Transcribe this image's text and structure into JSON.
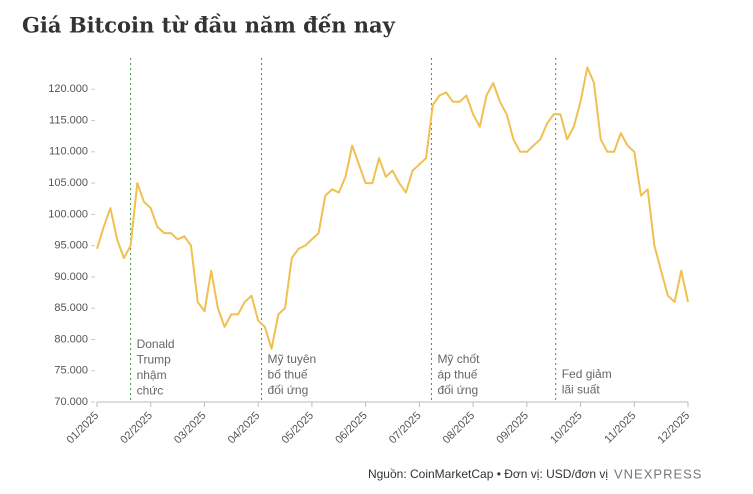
{
  "chart_data": {
    "type": "line",
    "title": "Giá Bitcoin từ đầu năm đến nay",
    "source": "Nguồn: CoinMarketCap • Đơn vị: USD/đơn vị",
    "logo": "VNEXPRESS",
    "color": "#f0c050",
    "categories": [
      "01/2025",
      null,
      null,
      null,
      null,
      null,
      null,
      null,
      "02/2025",
      null,
      null,
      null,
      null,
      null,
      null,
      null,
      "03/2025",
      null,
      null,
      null,
      null,
      null,
      null,
      null,
      "04/2025",
      null,
      null,
      null,
      null,
      null,
      null,
      null,
      "05/2025",
      null,
      null,
      null,
      null,
      null,
      null,
      null,
      "06/2025",
      null,
      null,
      null,
      null,
      null,
      null,
      null,
      "07/2025",
      null,
      null,
      null,
      null,
      null,
      null,
      null,
      "08/2025",
      null,
      null,
      null,
      null,
      null,
      null,
      null,
      "09/2025",
      null,
      null,
      null,
      null,
      null,
      null,
      null,
      "10/2025",
      null,
      null,
      null,
      null,
      null,
      null,
      null,
      "11/2025",
      null,
      null,
      null,
      null,
      null,
      null,
      null,
      "12/2025"
    ],
    "values": [
      94500,
      98000,
      101000,
      96000,
      93000,
      95000,
      105000,
      102000,
      101000,
      98000,
      97000,
      97000,
      96000,
      96500,
      95000,
      86000,
      84500,
      91000,
      85000,
      82000,
      84000,
      84000,
      86000,
      87000,
      83000,
      82000,
      78500,
      84000,
      85000,
      93000,
      94500,
      95000,
      96000,
      97000,
      103000,
      104000,
      103500,
      106000,
      111000,
      108000,
      105000,
      105000,
      109000,
      106000,
      107000,
      105000,
      103500,
      107000,
      108000,
      109000,
      117500,
      119000,
      119500,
      118000,
      118000,
      119000,
      116000,
      114000,
      119000,
      121000,
      118000,
      116000,
      112000,
      110000,
      110000,
      111000,
      112000,
      114500,
      116000,
      116000,
      112000,
      114000,
      118000,
      123500,
      121000,
      112000,
      110000,
      110000,
      113000,
      111000,
      110000,
      103000,
      104000,
      95000,
      91000,
      87000,
      86000,
      91000,
      86000
    ],
    "ylim": [
      70000,
      125000
    ],
    "yticks": [
      {
        "value": 70000,
        "label": "70.000"
      },
      {
        "value": 75000,
        "label": "75.000"
      },
      {
        "value": 80000,
        "label": "80.000"
      },
      {
        "value": 85000,
        "label": "85.000"
      },
      {
        "value": 90000,
        "label": "90.000"
      },
      {
        "value": 95000,
        "label": "95.000"
      },
      {
        "value": 100000,
        "label": "100.000"
      },
      {
        "value": 105000,
        "label": "105.000"
      },
      {
        "value": 110000,
        "label": "110.000"
      },
      {
        "value": 115000,
        "label": "115.000"
      },
      {
        "value": 120000,
        "label": "120.000"
      }
    ],
    "annotations": [
      {
        "lines": [
          "Donald",
          "Trump",
          "nhậm",
          "chức"
        ]
      },
      {
        "lines": [
          "Mỹ tuyên",
          "bố thuế",
          "đối ứng"
        ]
      },
      {
        "lines": [
          "Mỹ chốt",
          "áp thuế",
          "đối ứng"
        ]
      },
      {
        "lines": [
          "Fed giảm",
          "lãi suất"
        ]
      }
    ]
  }
}
